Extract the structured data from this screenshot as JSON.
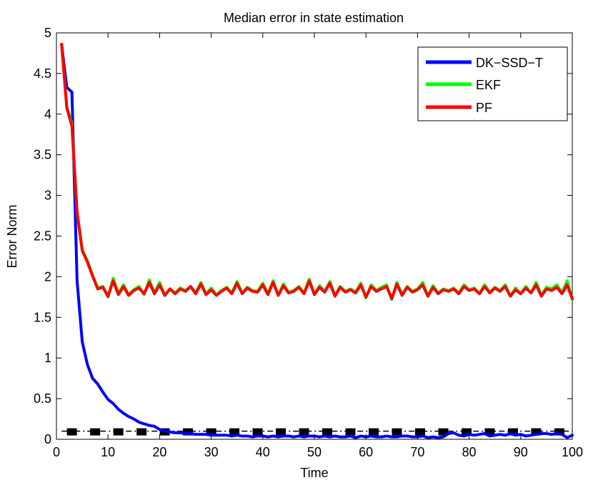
{
  "chart_data": {
    "type": "line",
    "title": "Median error in state estimation",
    "xlabel": "Time",
    "ylabel": "Error Norm",
    "xlim": [
      0,
      100
    ],
    "ylim": [
      0,
      5
    ],
    "xticks": [
      0,
      10,
      20,
      30,
      40,
      50,
      60,
      70,
      80,
      90,
      100
    ],
    "yticks": [
      0,
      0.5,
      1,
      1.5,
      2,
      2.5,
      3,
      3.5,
      4,
      4.5,
      5
    ],
    "legend_position": "top-right",
    "series": [
      {
        "name": "DK−SSD−T",
        "color": "#0000ff",
        "x_start": 1,
        "values": [
          4.86,
          4.33,
          4.27,
          1.95,
          1.2,
          0.92,
          0.75,
          0.68,
          0.58,
          0.49,
          0.44,
          0.37,
          0.32,
          0.28,
          0.25,
          0.21,
          0.19,
          0.17,
          0.16,
          0.12,
          0.1,
          0.09,
          0.08,
          0.08,
          0.07,
          0.07,
          0.06,
          0.06,
          0.06,
          0.05,
          0.05,
          0.05,
          0.05,
          0.04,
          0.05,
          0.04,
          0.04,
          0.03,
          0.04,
          0.04,
          0.03,
          0.04,
          0.03,
          0.04,
          0.04,
          0.03,
          0.04,
          0.03,
          0.04,
          0.04,
          0.03,
          0.04,
          0.03,
          0.04,
          0.03,
          0.03,
          0.04,
          0.02,
          0.04,
          0.03,
          0.04,
          0.03,
          0.03,
          0.04,
          0.03,
          0.03,
          0.04,
          0.04,
          0.03,
          0.03,
          0.04,
          0.02,
          0.03,
          0.02,
          0.03,
          0.07,
          0.08,
          0.05,
          0.04,
          0.06,
          0.05,
          0.06,
          0.07,
          0.04,
          0.05,
          0.06,
          0.05,
          0.07,
          0.05,
          0.06,
          0.04,
          0.05,
          0.06,
          0.07,
          0.07,
          0.06,
          0.07,
          0.06,
          0.02,
          0.05
        ]
      },
      {
        "name": "EKF",
        "color": "#00ff00",
        "x_start": 1,
        "values": [
          4.86,
          4.1,
          3.88,
          2.78,
          2.33,
          2.2,
          2.02,
          1.86,
          1.88,
          1.75,
          1.98,
          1.8,
          1.9,
          1.78,
          1.84,
          1.88,
          1.78,
          1.96,
          1.8,
          1.93,
          1.77,
          1.85,
          1.8,
          1.86,
          1.83,
          1.88,
          1.8,
          1.93,
          1.79,
          1.86,
          1.78,
          1.83,
          1.87,
          1.8,
          1.94,
          1.8,
          1.87,
          1.83,
          1.82,
          1.92,
          1.79,
          1.95,
          1.77,
          1.91,
          1.81,
          1.83,
          1.88,
          1.8,
          1.97,
          1.78,
          1.89,
          1.82,
          1.94,
          1.77,
          1.88,
          1.82,
          1.85,
          1.81,
          1.92,
          1.74,
          1.9,
          1.83,
          1.87,
          1.9,
          1.72,
          1.93,
          1.78,
          1.88,
          1.82,
          1.85,
          1.93,
          1.76,
          1.89,
          1.8,
          1.85,
          1.83,
          1.86,
          1.8,
          1.9,
          1.84,
          1.86,
          1.79,
          1.9,
          1.81,
          1.87,
          1.83,
          1.9,
          1.76,
          1.86,
          1.79,
          1.88,
          1.8,
          1.93,
          1.77,
          1.87,
          1.85,
          1.9,
          1.8,
          1.95,
          1.72
        ]
      },
      {
        "name": "PF",
        "color": "#ff0000",
        "x_start": 1,
        "values": [
          4.86,
          4.08,
          3.85,
          2.8,
          2.32,
          2.18,
          2.01,
          1.85,
          1.87,
          1.76,
          1.95,
          1.78,
          1.88,
          1.77,
          1.83,
          1.86,
          1.79,
          1.93,
          1.79,
          1.9,
          1.77,
          1.85,
          1.79,
          1.85,
          1.82,
          1.88,
          1.79,
          1.91,
          1.78,
          1.84,
          1.77,
          1.82,
          1.86,
          1.79,
          1.92,
          1.79,
          1.86,
          1.82,
          1.81,
          1.9,
          1.78,
          1.93,
          1.77,
          1.89,
          1.8,
          1.82,
          1.87,
          1.79,
          1.95,
          1.78,
          1.87,
          1.81,
          1.92,
          1.76,
          1.87,
          1.81,
          1.84,
          1.8,
          1.9,
          1.75,
          1.88,
          1.82,
          1.85,
          1.88,
          1.73,
          1.91,
          1.77,
          1.87,
          1.81,
          1.84,
          1.9,
          1.76,
          1.87,
          1.79,
          1.84,
          1.82,
          1.85,
          1.79,
          1.88,
          1.83,
          1.85,
          1.79,
          1.88,
          1.8,
          1.86,
          1.82,
          1.88,
          1.76,
          1.84,
          1.79,
          1.86,
          1.8,
          1.9,
          1.76,
          1.85,
          1.83,
          1.87,
          1.79,
          1.9,
          1.73
        ]
      }
    ],
    "reference_markers": {
      "style": "dash-dot",
      "color": "#000000",
      "y": 0.1,
      "x_from": 1,
      "x_to": 100,
      "square_x": [
        3,
        7.5,
        12,
        16.5,
        21,
        25.5,
        30,
        34.5,
        39,
        43.5,
        48,
        52.5,
        57,
        61.5,
        66,
        70.5,
        75,
        79.5,
        84,
        88.5,
        93,
        97.5
      ]
    }
  }
}
